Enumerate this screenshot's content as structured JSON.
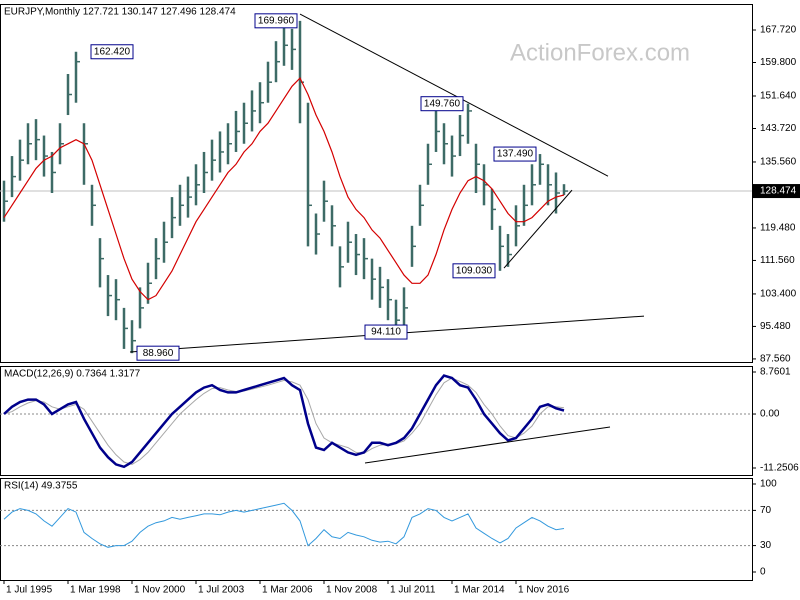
{
  "chart_data": [
    {
      "type": "ohlc",
      "title": "EURJPY,Monthly 127.721 130.147 127.496 128.474",
      "watermark": "ActionForex.com",
      "color": "#3d6b66",
      "xlim": [
        -2,
        374
      ],
      "xticks": [
        {
          "value": 0,
          "label": "1 Jul 1995"
        },
        {
          "value": 32,
          "label": "1 Mar 1998"
        },
        {
          "value": 64,
          "label": "1 Nov 2000"
        },
        {
          "value": 96,
          "label": "1 Jul 2003"
        },
        {
          "value": 128,
          "label": "1 Mar 2006"
        },
        {
          "value": 160,
          "label": "1 Nov 2008"
        },
        {
          "value": 192,
          "label": "1 Jul 2011"
        },
        {
          "value": 224,
          "label": "1 Mar 2014"
        },
        {
          "value": 256,
          "label": "1 Nov 2016"
        }
      ],
      "x": [
        0,
        4,
        8,
        12,
        16,
        20,
        24,
        28,
        32,
        36,
        40,
        44,
        48,
        52,
        56,
        60,
        64,
        68,
        72,
        76,
        80,
        84,
        88,
        92,
        96,
        100,
        104,
        108,
        112,
        116,
        120,
        124,
        128,
        132,
        136,
        140,
        144,
        148,
        152,
        156,
        160,
        164,
        168,
        172,
        176,
        180,
        184,
        188,
        192,
        196,
        200,
        204,
        208,
        212,
        216,
        220,
        224,
        228,
        232,
        236,
        240,
        244,
        248,
        252,
        256,
        260,
        264,
        268,
        272,
        276,
        280
      ],
      "high": [
        131,
        137,
        141,
        145,
        146,
        142,
        138,
        145,
        157,
        162.42,
        145,
        130,
        117,
        108,
        107,
        100,
        97,
        105,
        111,
        117,
        121,
        127,
        130,
        132,
        135,
        138,
        141,
        143,
        145,
        148,
        150,
        153,
        155,
        160,
        165,
        169,
        168,
        169.96,
        150,
        123,
        131,
        125,
        115,
        121,
        118,
        117,
        112,
        110,
        107,
        102,
        105,
        120,
        130,
        140,
        148,
        145,
        142,
        147,
        149.76,
        140,
        135,
        129,
        120,
        118,
        125,
        130,
        135,
        137.49,
        135,
        133,
        130.147
      ],
      "low": [
        121,
        127,
        131,
        135,
        136,
        132,
        128,
        135,
        147,
        150,
        130,
        120,
        105,
        98,
        97,
        90,
        88.96,
        95,
        101,
        107,
        111,
        117,
        120,
        122,
        125,
        128,
        131,
        133,
        135,
        138,
        140,
        143,
        145,
        150,
        155,
        159,
        158,
        145,
        115,
        113,
        121,
        115,
        105,
        111,
        108,
        107,
        102,
        100,
        97,
        94.11,
        95,
        110,
        120,
        130,
        138,
        135,
        132,
        137,
        140,
        128,
        125,
        119,
        109.03,
        110,
        115,
        120,
        125,
        130,
        125,
        123,
        127.496
      ],
      "close": [
        126,
        132,
        136,
        140,
        141,
        137,
        133,
        140,
        152,
        160,
        140,
        125,
        112,
        103,
        102,
        95,
        92,
        100,
        106,
        112,
        116,
        122,
        125,
        127,
        130,
        133,
        136,
        138,
        140,
        143,
        145,
        148,
        150,
        155,
        160,
        164,
        163,
        155,
        125,
        118,
        126,
        120,
        110,
        116,
        113,
        112,
        107,
        105,
        102,
        97,
        100,
        115,
        125,
        135,
        143,
        140,
        137,
        142,
        148,
        135,
        130,
        124,
        115,
        113,
        120,
        125,
        130,
        135,
        130,
        128,
        128.474
      ],
      "ma": {
        "color": "#d40000",
        "values": [
          122,
          125,
          128,
          131,
          134,
          136,
          137,
          139,
          140,
          141,
          140,
          136,
          130,
          124,
          118,
          112,
          107,
          104,
          102,
          103,
          106,
          109,
          113,
          117,
          121,
          124,
          127,
          130,
          133,
          135,
          138,
          140,
          143,
          145,
          148,
          151,
          154,
          156,
          152,
          147,
          143,
          138,
          132,
          127,
          124,
          122,
          119,
          117,
          114,
          111,
          108,
          106,
          106,
          108,
          113,
          119,
          124,
          128,
          131,
          132,
          131,
          129,
          126,
          123,
          121,
          121,
          122,
          124,
          126,
          127,
          127.5
        ]
      },
      "ylim": [
        86.81,
        174.06
      ],
      "yticks": [
        {
          "value": 167.72,
          "label": "167.720"
        },
        {
          "value": 159.8,
          "label": "159.800"
        },
        {
          "value": 151.64,
          "label": "151.640"
        },
        {
          "value": 143.72,
          "label": "143.720"
        },
        {
          "value": 135.56,
          "label": "135.560"
        },
        {
          "value": 119.48,
          "label": "119.480"
        },
        {
          "value": 111.56,
          "label": "111.560"
        },
        {
          "value": 103.4,
          "label": "103.400"
        },
        {
          "value": 95.48,
          "label": "95.480"
        },
        {
          "value": 87.56,
          "label": "87.560"
        }
      ],
      "last": {
        "value": 128.474,
        "label": "128.474"
      },
      "annotations": [
        {
          "x": 147,
          "value": 169.96,
          "label": "169.960"
        },
        {
          "x": 37,
          "value": 162.42,
          "label": "162.420"
        },
        {
          "x": 231,
          "value": 149.76,
          "label": "149.760"
        },
        {
          "x": 268,
          "value": 137.49,
          "label": "137.490"
        },
        {
          "x": 250,
          "value": 109.03,
          "label": "109.030"
        },
        {
          "x": 198,
          "value": 94.11,
          "label": "94.110"
        },
        {
          "x": 63,
          "value": 88.96,
          "label": "88.960"
        }
      ],
      "trendlines": [
        {
          "x": [
            63,
            320
          ],
          "y": [
            89.25,
            98
          ]
        },
        {
          "x": [
            148,
            302
          ],
          "y": [
            171.6,
            132.1
          ]
        },
        {
          "x": [
            250,
            284
          ],
          "y": [
            109.7,
            128.7
          ]
        }
      ]
    },
    {
      "type": "line",
      "title": "MACD(12,26,9) 0.7364 1.3177",
      "ylim": [
        -12.71,
        10.01
      ],
      "yticks": [
        8.7601,
        {
          "value": 0,
          "label": "0.00"
        },
        -11.2506
      ],
      "macd": {
        "color": "#00008b",
        "values": [
          0,
          1.5,
          2.5,
          3,
          3,
          2,
          0,
          1,
          2,
          2.5,
          -1,
          -4,
          -7,
          -9,
          -10.5,
          -11,
          -10,
          -8,
          -6,
          -4,
          -2,
          0,
          1.5,
          3,
          4.5,
          5.5,
          6,
          5,
          4.5,
          4.5,
          5,
          5.5,
          6,
          6.5,
          7,
          7.5,
          6,
          5,
          -2,
          -7,
          -7.5,
          -6,
          -7,
          -8,
          -8.5,
          -8,
          -6,
          -6,
          -6.5,
          -6,
          -5,
          -3,
          0,
          3,
          6,
          8,
          7.5,
          6,
          5.5,
          3,
          0,
          -2,
          -4,
          -5.5,
          -5,
          -3,
          -1,
          1.5,
          2,
          1.2,
          0.7364
        ]
      },
      "signal": {
        "color": "#a8a8a8",
        "values": [
          0,
          0.5,
          1.5,
          2.3,
          2.8,
          2.5,
          1.5,
          1,
          1.5,
          2,
          1,
          -1.5,
          -4,
          -6.5,
          -8.5,
          -10,
          -10.5,
          -9.5,
          -8,
          -6,
          -4,
          -2,
          0,
          1.5,
          3,
          4.3,
          5.3,
          5.5,
          5,
          4.7,
          4.8,
          5.2,
          5.6,
          6,
          6.5,
          7,
          6.7,
          6,
          3,
          -2,
          -5,
          -6,
          -6.5,
          -7,
          -8,
          -8.2,
          -7.2,
          -6.5,
          -6.3,
          -6.2,
          -5.6,
          -4,
          -2,
          1,
          4,
          6.5,
          7.5,
          6.8,
          6,
          4.5,
          2,
          0,
          -2.5,
          -4.5,
          -5,
          -4,
          -2.5,
          0,
          1.5,
          1.5,
          1.3177
        ]
      },
      "trendlines": [
        {
          "x": [
            180.5,
            303
          ],
          "y": [
            -10.2,
            -2.7
          ]
        }
      ]
    },
    {
      "type": "line",
      "title": "RSI(14) 49.3755",
      "ylim": [
        -9.1,
        106.8
      ],
      "yticks": [
        100,
        70,
        30,
        0
      ],
      "color": "#3399dd",
      "values": [
        60,
        68,
        72,
        70,
        66,
        58,
        52,
        62,
        72,
        68,
        45,
        38,
        32,
        28,
        30,
        30,
        35,
        45,
        52,
        56,
        58,
        62,
        60,
        62,
        64,
        66,
        66,
        65,
        68,
        70,
        68,
        70,
        72,
        74,
        76,
        78,
        70,
        58,
        30,
        38,
        48,
        40,
        38,
        45,
        42,
        40,
        36,
        34,
        35,
        32,
        40,
        62,
        66,
        72,
        70,
        62,
        58,
        62,
        66,
        50,
        44,
        38,
        33,
        38,
        50,
        56,
        62,
        58,
        52,
        48,
        49.3755
      ]
    }
  ]
}
